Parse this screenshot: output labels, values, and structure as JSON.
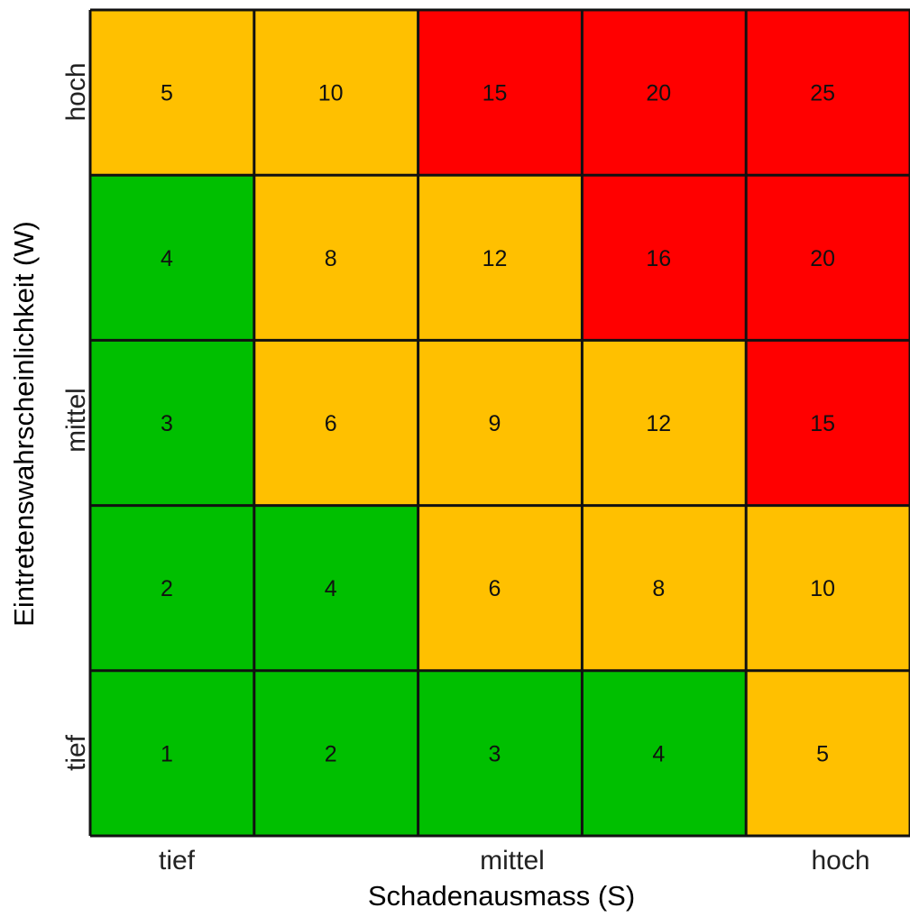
{
  "chart_data": {
    "type": "heatmap",
    "title": "",
    "xlabel": "Schadenausmass (S)",
    "ylabel": "Eintretenswahrscheinlichkeit (W)",
    "x_tick_labels": [
      "tief",
      "mittel",
      "hoch"
    ],
    "y_tick_labels": [
      "tief",
      "mittel",
      "hoch"
    ],
    "columns": 5,
    "rows": 5,
    "values": [
      [
        5,
        10,
        15,
        20,
        25
      ],
      [
        4,
        8,
        12,
        16,
        20
      ],
      [
        3,
        6,
        9,
        12,
        15
      ],
      [
        2,
        4,
        6,
        8,
        10
      ],
      [
        1,
        2,
        3,
        4,
        5
      ]
    ],
    "levels": [
      [
        "medium",
        "medium",
        "high",
        "high",
        "high"
      ],
      [
        "low",
        "medium",
        "medium",
        "high",
        "high"
      ],
      [
        "low",
        "medium",
        "medium",
        "medium",
        "high"
      ],
      [
        "low",
        "low",
        "medium",
        "medium",
        "medium"
      ],
      [
        "low",
        "low",
        "low",
        "low",
        "medium"
      ]
    ],
    "colors": {
      "low": "#00bf00",
      "medium": "#ffc000",
      "high": "#ff0000",
      "grid": "#111111"
    },
    "grid": true,
    "legend": "none"
  }
}
